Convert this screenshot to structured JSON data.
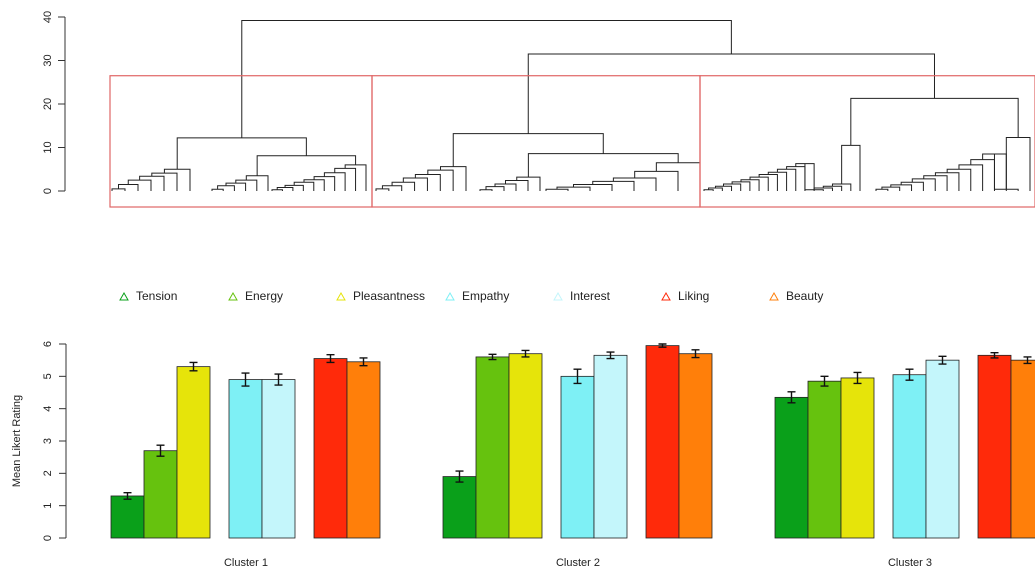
{
  "chart_data": [
    {
      "type": "dendrogram",
      "yticks": [
        "0",
        "10",
        "20",
        "30",
        "40"
      ],
      "ylim": [
        0,
        42
      ],
      "cut_height": 26.5,
      "clusters_highlighted": 3
    },
    {
      "type": "bar",
      "ylabel": "Mean Likert Rating",
      "ylim": [
        0,
        6
      ],
      "yticks": [
        "0",
        "1",
        "2",
        "3",
        "4",
        "5",
        "6"
      ],
      "legend_position": "top",
      "series": [
        {
          "name": "Tension",
          "color": "#0aa01a"
        },
        {
          "name": "Energy",
          "color": "#66c20e"
        },
        {
          "name": "Pleasantness",
          "color": "#e6e40a"
        },
        {
          "name": "Empathy",
          "color": "#7ef0f5"
        },
        {
          "name": "Interest",
          "color": "#c4f6fb"
        },
        {
          "name": "Liking",
          "color": "#ff2a0a"
        },
        {
          "name": "Beauty",
          "color": "#ff7f0a"
        }
      ],
      "categories": [
        "Cluster 1",
        "Cluster 2",
        "Cluster 3"
      ],
      "values": [
        [
          1.3,
          2.7,
          5.3,
          4.9,
          4.9,
          5.55,
          5.45
        ],
        [
          1.9,
          5.6,
          5.7,
          5.0,
          5.65,
          5.95,
          5.7
        ],
        [
          4.35,
          4.85,
          4.95,
          5.05,
          5.5,
          5.65,
          5.5
        ]
      ],
      "errors": [
        [
          0.1,
          0.17,
          0.13,
          0.2,
          0.17,
          0.12,
          0.12
        ],
        [
          0.17,
          0.08,
          0.1,
          0.22,
          0.1,
          0.05,
          0.12
        ],
        [
          0.17,
          0.15,
          0.17,
          0.17,
          0.12,
          0.08,
          0.1
        ]
      ]
    }
  ]
}
